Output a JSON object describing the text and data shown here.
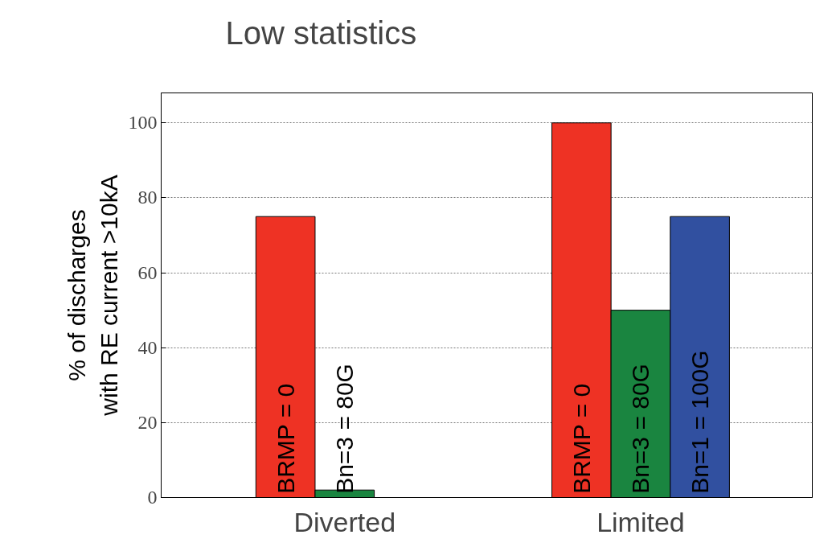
{
  "chart_data": {
    "type": "bar",
    "categories": [
      "Diverted",
      "Limited"
    ],
    "ylabel": "% of discharges\nwith RE current >10kA",
    "series": [
      {
        "name": "BRMP = 0",
        "color": "#ee3224",
        "values": [
          75,
          100
        ]
      },
      {
        "name": "Bn=3 = 80G",
        "color": "#1a8540",
        "values": [
          2,
          50
        ]
      },
      {
        "name": "Bn=1 = 100G",
        "color": "#3150a0",
        "values": [
          null,
          75
        ]
      }
    ],
    "ylim": [
      0,
      108
    ],
    "yticks": [
      0,
      20,
      40,
      60,
      80,
      100
    ],
    "grid": "y",
    "annotations": [
      "Low statistics"
    ]
  }
}
